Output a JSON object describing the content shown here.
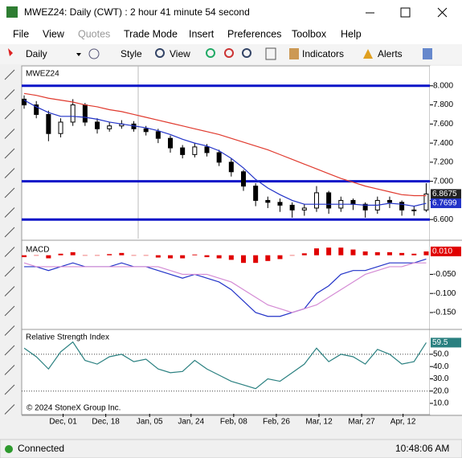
{
  "window": {
    "title": "MWEZ24: Daily (CWT) : 2 hour 41 minute 54 second"
  },
  "menu": [
    "File",
    "View",
    "Quotes",
    "Trade Mode",
    "Insert",
    "Preferences",
    "Toolbox",
    "Help"
  ],
  "toolbar": {
    "interval": "Daily",
    "style": "Style",
    "view": "View",
    "indicators": "Indicators",
    "alerts": "Alerts"
  },
  "footer": {
    "copyright": "© 2024 StoneX Group Inc."
  },
  "status": {
    "connection": "Connected",
    "time": "10:48:06 AM"
  },
  "chart_data": [
    {
      "type": "candlestick",
      "title": "MWEZ24",
      "xlim": [
        -0.2,
        33.3
      ],
      "ylim": [
        6.4,
        8.2
      ],
      "yticks": [
        {
          "value": 8.0,
          "label": "8.000"
        },
        {
          "value": 7.8,
          "label": "7.800"
        },
        {
          "value": 7.6,
          "label": "7.600"
        },
        {
          "value": 7.4,
          "label": "7.400"
        },
        {
          "value": 7.2,
          "label": "7.200"
        },
        {
          "value": 7.0,
          "label": "7.000"
        },
        {
          "value": 6.8,
          "label": "6.800"
        },
        {
          "value": 6.6,
          "label": "6.600"
        }
      ],
      "hlines": [
        8.0,
        7.0,
        6.6
      ],
      "hline_color": "#0a14c8",
      "series": [
        {
          "type": "candlestick",
          "color": "#000000",
          "label_last": true,
          "open": [
            7.86,
            7.8,
            7.7,
            7.5,
            7.62,
            7.8,
            7.62,
            7.55,
            7.58,
            7.6,
            7.55,
            7.52,
            7.45,
            7.35,
            7.28,
            7.36,
            7.3,
            7.2,
            7.1,
            6.95,
            6.8,
            6.78,
            6.75,
            6.7,
            6.72,
            6.88,
            6.72,
            6.8,
            6.76,
            6.7,
            6.8,
            6.78,
            6.7,
            6.7
          ],
          "high": [
            7.9,
            7.84,
            7.74,
            7.66,
            7.86,
            7.82,
            7.66,
            7.62,
            7.64,
            7.63,
            7.58,
            7.55,
            7.48,
            7.38,
            7.4,
            7.39,
            7.33,
            7.24,
            7.12,
            6.98,
            6.84,
            6.82,
            6.78,
            6.76,
            6.95,
            6.9,
            6.84,
            6.82,
            6.78,
            6.84,
            6.84,
            6.8,
            6.74,
            6.98
          ],
          "low": [
            7.76,
            7.66,
            7.42,
            7.46,
            7.58,
            7.58,
            7.5,
            7.52,
            7.55,
            7.52,
            7.48,
            7.4,
            7.3,
            7.24,
            7.25,
            7.26,
            7.16,
            7.05,
            6.9,
            6.74,
            6.72,
            6.68,
            6.62,
            6.64,
            6.68,
            6.66,
            6.68,
            6.7,
            6.62,
            6.66,
            6.72,
            6.64,
            6.64,
            6.68
          ],
          "close": [
            7.8,
            7.7,
            7.5,
            7.62,
            7.8,
            7.62,
            7.55,
            7.58,
            7.6,
            7.55,
            7.52,
            7.45,
            7.35,
            7.28,
            7.36,
            7.3,
            7.2,
            7.1,
            6.95,
            6.8,
            6.78,
            6.75,
            6.7,
            6.72,
            6.88,
            6.72,
            6.8,
            6.76,
            6.7,
            6.8,
            6.78,
            6.7,
            6.7,
            6.8675
          ]
        },
        {
          "type": "line",
          "color": "#e03a2e",
          "values": [
            7.92,
            7.9,
            7.87,
            7.85,
            7.83,
            7.8,
            7.78,
            7.75,
            7.73,
            7.7,
            7.67,
            7.64,
            7.61,
            7.58,
            7.55,
            7.52,
            7.49,
            7.45,
            7.41,
            7.37,
            7.33,
            7.28,
            7.23,
            7.18,
            7.13,
            7.08,
            7.03,
            6.99,
            6.95,
            6.92,
            6.89,
            6.86,
            6.85,
            6.85
          ]
        },
        {
          "type": "line",
          "color": "#2233c8",
          "label_last": true,
          "values": [
            7.85,
            7.78,
            7.72,
            7.68,
            7.68,
            7.67,
            7.65,
            7.62,
            7.6,
            7.58,
            7.56,
            7.53,
            7.49,
            7.44,
            7.4,
            7.37,
            7.32,
            7.24,
            7.14,
            7.02,
            6.93,
            6.86,
            6.8,
            6.76,
            6.76,
            6.76,
            6.76,
            6.76,
            6.75,
            6.75,
            6.77,
            6.76,
            6.74,
            6.7699
          ]
        }
      ]
    },
    {
      "type": "macd",
      "title": "MACD",
      "xlim": [
        -0.2,
        33.3
      ],
      "ylim": [
        -0.19,
        0.033
      ],
      "yticks": [
        {
          "value": -0.05,
          "label": "-0.050"
        },
        {
          "value": -0.1,
          "label": "-0.100"
        },
        {
          "value": -0.15,
          "label": "-0.150"
        }
      ],
      "series": [
        {
          "type": "histogram",
          "color": "#e00000",
          "current_label": "0.010",
          "values": [
            -0.005,
            0,
            -0.008,
            0.004,
            0.008,
            0,
            0,
            0.003,
            0.006,
            0,
            0,
            -0.006,
            -0.008,
            -0.008,
            0.002,
            -0.005,
            -0.008,
            -0.012,
            -0.02,
            -0.02,
            -0.015,
            -0.01,
            0,
            0.005,
            0.018,
            0.02,
            0.02,
            0.015,
            0.01,
            0.008,
            0.008,
            0.006,
            0.004,
            0.01
          ]
        },
        {
          "type": "line",
          "color": "#2233c8",
          "values": [
            -0.03,
            -0.03,
            -0.04,
            -0.03,
            -0.02,
            -0.03,
            -0.03,
            -0.03,
            -0.02,
            -0.03,
            -0.03,
            -0.04,
            -0.05,
            -0.06,
            -0.05,
            -0.06,
            -0.07,
            -0.09,
            -0.12,
            -0.15,
            -0.16,
            -0.16,
            -0.15,
            -0.14,
            -0.1,
            -0.08,
            -0.05,
            -0.04,
            -0.04,
            -0.03,
            -0.02,
            -0.02,
            -0.02,
            -0.01
          ]
        },
        {
          "type": "line",
          "color": "#d48ad4",
          "values": [
            -0.02,
            -0.03,
            -0.03,
            -0.03,
            -0.03,
            -0.03,
            -0.03,
            -0.03,
            -0.03,
            -0.03,
            -0.03,
            -0.03,
            -0.04,
            -0.05,
            -0.05,
            -0.05,
            -0.06,
            -0.07,
            -0.09,
            -0.11,
            -0.13,
            -0.14,
            -0.15,
            -0.14,
            -0.13,
            -0.11,
            -0.09,
            -0.07,
            -0.05,
            -0.04,
            -0.03,
            -0.03,
            -0.02,
            -0.02
          ]
        }
      ]
    },
    {
      "type": "line",
      "title": "Relative Strength Index",
      "xlim": [
        -0.2,
        33.3
      ],
      "ylim": [
        1.5,
        69.6
      ],
      "yticks": [
        {
          "value": 50,
          "label": "50.0"
        },
        {
          "value": 40,
          "label": "40.0"
        },
        {
          "value": 30,
          "label": "30.0"
        },
        {
          "value": 20,
          "label": "20.0"
        },
        {
          "value": 10,
          "label": "10.0"
        }
      ],
      "levels": [
        50,
        20
      ],
      "xticks": [
        {
          "value": 3.2,
          "label": "Dec, 01"
        },
        {
          "value": 6.7,
          "label": "Dec, 18"
        },
        {
          "value": 10.3,
          "label": "Jan, 05"
        },
        {
          "value": 13.7,
          "label": "Jan, 24"
        },
        {
          "value": 17.2,
          "label": "Feb, 08"
        },
        {
          "value": 20.7,
          "label": "Feb, 26"
        },
        {
          "value": 24.2,
          "label": "Mar, 12"
        },
        {
          "value": 27.7,
          "label": "Mar, 27"
        },
        {
          "value": 31.1,
          "label": "Apr, 12"
        }
      ],
      "series": [
        {
          "type": "line",
          "color": "#2a8080",
          "label_last": true,
          "values": [
            55,
            48,
            38,
            52,
            60,
            45,
            42,
            48,
            50,
            44,
            46,
            38,
            35,
            36,
            45,
            38,
            33,
            28,
            25,
            22,
            30,
            28,
            35,
            42,
            55,
            44,
            50,
            48,
            42,
            54,
            50,
            42,
            44,
            59.5
          ]
        }
      ]
    }
  ]
}
